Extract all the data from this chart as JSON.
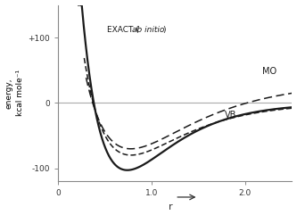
{
  "title": "",
  "xlabel": "r",
  "ylabel": "energy,\nkcal mole⁻¹",
  "xlim": [
    0,
    2.5
  ],
  "ylim": [
    -120,
    150
  ],
  "yticks": [
    -100,
    0,
    100
  ],
  "ytick_labels": [
    "-100",
    "0",
    "+100"
  ],
  "xticks": [
    0,
    1.0,
    2.0
  ],
  "xtick_labels": [
    "0",
    "1.0",
    "2.0"
  ],
  "exact_label_plain": "EXACT (",
  "exact_label_italic": "ab initio",
  "exact_label_close": ")",
  "mo_label": "MO",
  "vb_label": "VB",
  "background_color": "#ffffff",
  "curve_color": "#1a1a1a",
  "zero_line_color": "#aaaaaa",
  "spine_color": "#888888"
}
